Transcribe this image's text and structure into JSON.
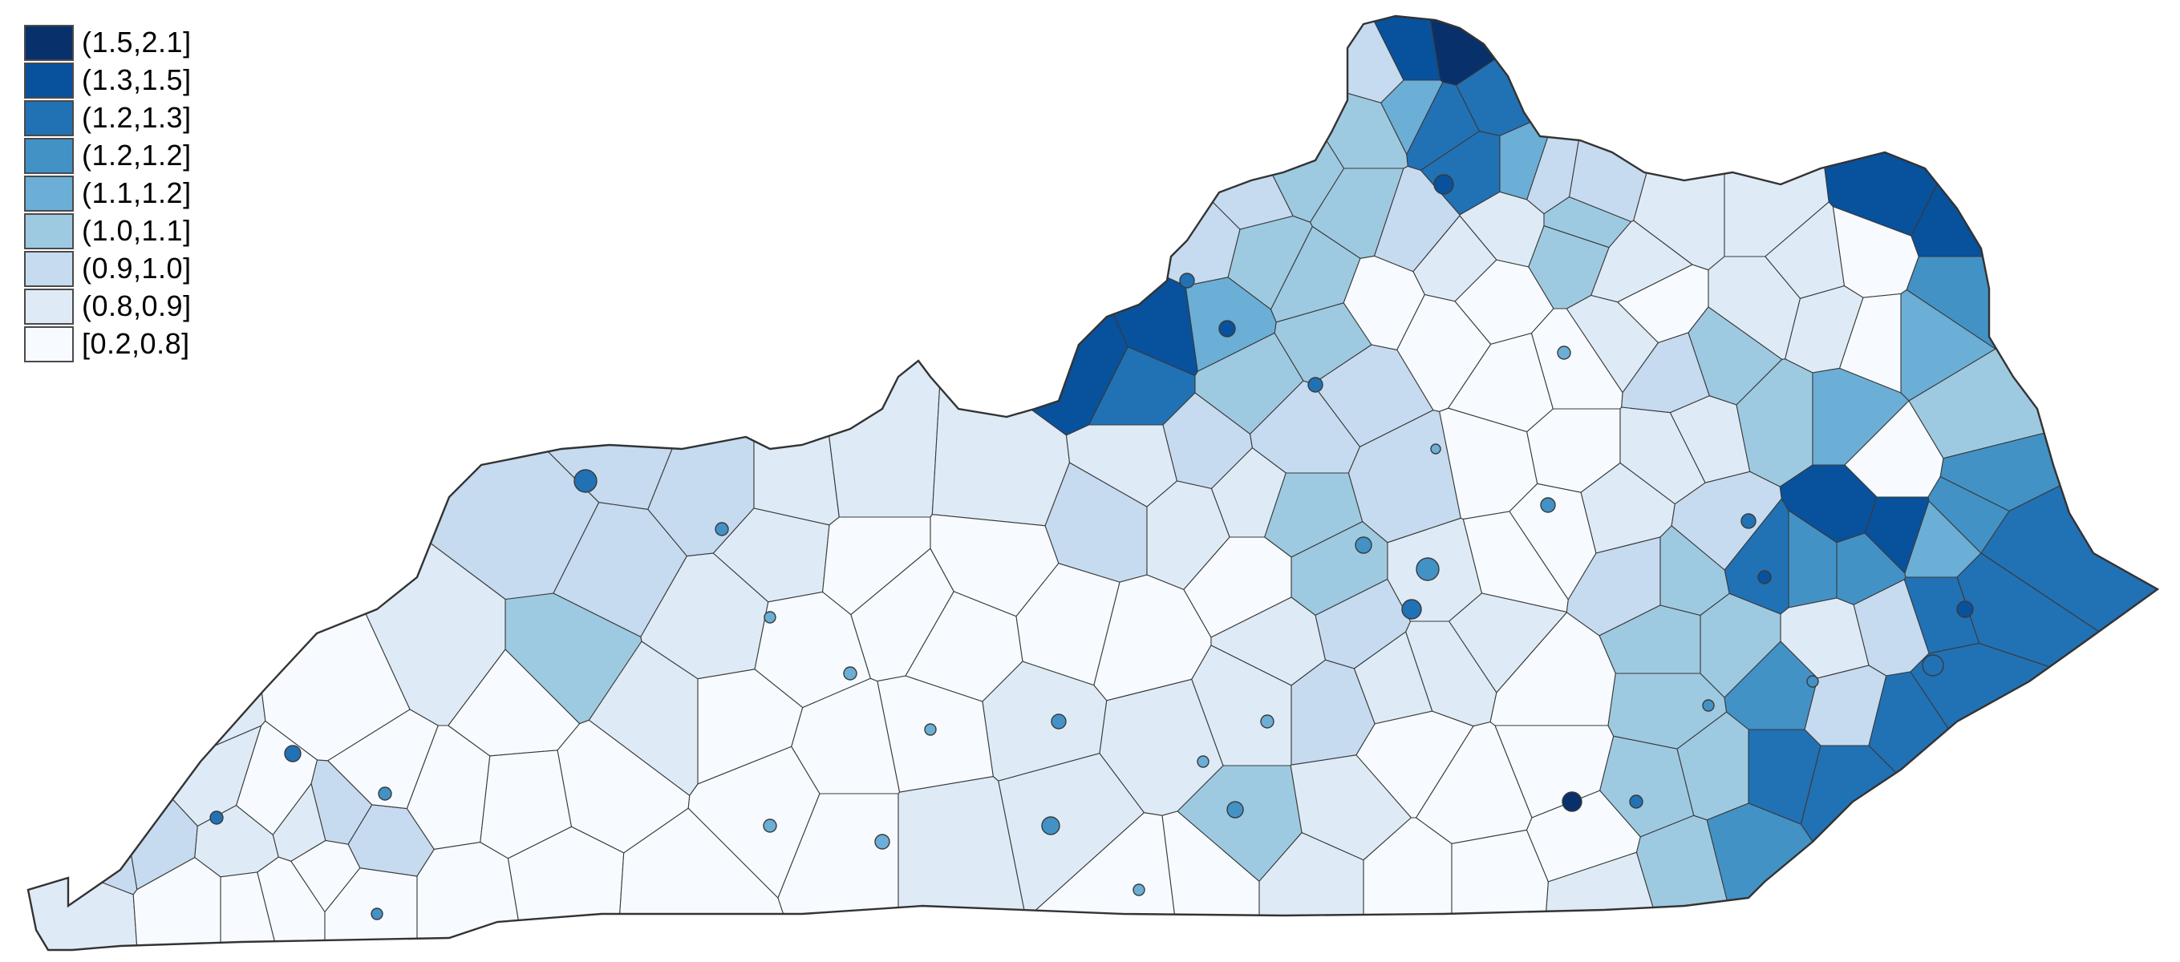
{
  "map": {
    "region": "Kentucky",
    "border_color": "#3a3a3a"
  },
  "legend": {
    "placement": "top-left",
    "items": [
      {
        "label": "(1.5,2.1]",
        "color": "#08306b"
      },
      {
        "label": "(1.3,1.5]",
        "color": "#08519c"
      },
      {
        "label": "(1.2,1.3]",
        "color": "#2171b5"
      },
      {
        "label": "(1.2,1.2]",
        "color": "#4292c6"
      },
      {
        "label": "(1.1,1.2]",
        "color": "#6baed6"
      },
      {
        "label": "(1.0,1.1]",
        "color": "#9ecae1"
      },
      {
        "label": "(0.9,1.0]",
        "color": "#c6dbef"
      },
      {
        "label": "(0.8,0.9]",
        "color": "#deebf7"
      },
      {
        "label": "[0.2,0.8]",
        "color": "#f7fbff"
      }
    ]
  }
}
